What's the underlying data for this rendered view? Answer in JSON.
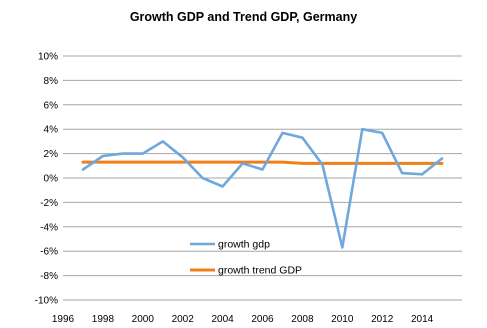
{
  "chart_data": {
    "type": "line",
    "title": "Growth GDP and Trend GDP, Germany",
    "xlabel": "",
    "ylabel": "",
    "xlim": [
      1996,
      2016
    ],
    "ylim": [
      -10,
      10
    ],
    "x_ticks": [
      1996,
      1998,
      2000,
      2002,
      2004,
      2006,
      2008,
      2010,
      2012,
      2014
    ],
    "y_ticks": [
      10,
      8,
      6,
      4,
      2,
      0,
      -2,
      -4,
      -6,
      -8,
      -10
    ],
    "y_tick_labels": [
      "10%",
      "8%",
      "6%",
      "4%",
      "2%",
      "0%",
      "-2%",
      "-4%",
      "-6%",
      "-8%",
      "-10%"
    ],
    "grid": "horizontal",
    "legend_position": "inside-lower-center",
    "series": [
      {
        "name": "growth gdp",
        "color": "#6FA8DC",
        "x": [
          1997,
          1998,
          1999,
          2000,
          2001,
          2002,
          2003,
          2004,
          2005,
          2006,
          2007,
          2008,
          2009,
          2010,
          2011,
          2012,
          2013,
          2014,
          2015
        ],
        "y": [
          0.7,
          1.8,
          2.0,
          2.0,
          3.0,
          1.7,
          0.0,
          -0.7,
          1.2,
          0.7,
          3.7,
          3.3,
          1.1,
          -5.7,
          4.0,
          3.7,
          0.4,
          0.3,
          1.6
        ]
      },
      {
        "name": "growth trend GDP",
        "color": "#F07F1A",
        "x": [
          1997,
          1998,
          1999,
          2000,
          2001,
          2002,
          2003,
          2004,
          2005,
          2006,
          2007,
          2008,
          2009,
          2010,
          2011,
          2012,
          2013,
          2014,
          2015
        ],
        "y": [
          1.3,
          1.3,
          1.3,
          1.3,
          1.3,
          1.3,
          1.3,
          1.3,
          1.3,
          1.3,
          1.3,
          1.2,
          1.2,
          1.2,
          1.2,
          1.2,
          1.2,
          1.2,
          1.2
        ]
      }
    ]
  }
}
